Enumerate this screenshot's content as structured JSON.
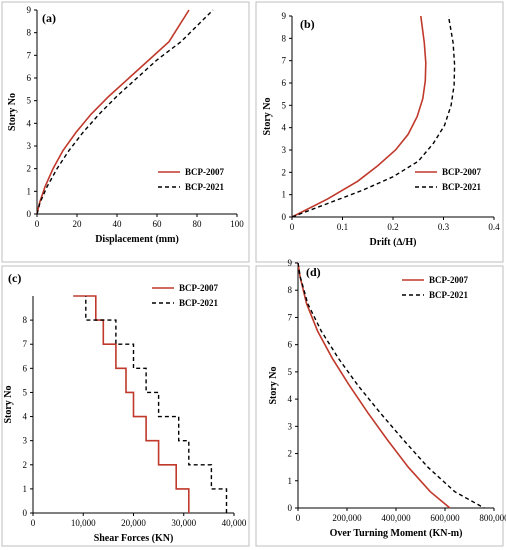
{
  "chart_data": [
    {
      "panel": "(a)",
      "type": "line",
      "xlabel": "Displacement (mm)",
      "ylabel": "Story No",
      "xlim": [
        0,
        100
      ],
      "ylim": [
        0,
        9
      ],
      "xticks": [
        0,
        20,
        40,
        60,
        80,
        100
      ],
      "xtick_labels": [
        "0",
        "20",
        "40",
        "60",
        "80",
        "100"
      ],
      "yticks": [
        0,
        1,
        2,
        3,
        4,
        5,
        6,
        7,
        8,
        9
      ],
      "ytick_labels": [
        "0",
        "1",
        "2",
        "3",
        "4",
        "5",
        "6",
        "7",
        "8",
        "9"
      ],
      "grid": false,
      "legend_position": "bottom-right",
      "series": [
        {
          "name": "BCP-2007",
          "color": "#c0392b",
          "dash": "solid",
          "step": false,
          "x": [
            0,
            1.3,
            4,
            8,
            13,
            19.5,
            27,
            36,
            46,
            56,
            66,
            76
          ],
          "y": [
            0,
            0.5,
            1.2,
            2,
            2.8,
            3.6,
            4.4,
            5.2,
            6,
            6.8,
            7.6,
            9
          ]
        },
        {
          "name": "BCP-2021",
          "color": "#000000",
          "dash": "dashed",
          "step": false,
          "x": [
            0,
            1.5,
            5,
            10,
            16,
            23,
            31,
            40,
            50,
            60,
            72,
            88
          ],
          "y": [
            0,
            0.5,
            1.2,
            2,
            2.8,
            3.6,
            4.4,
            5.2,
            6,
            6.8,
            7.6,
            9
          ]
        }
      ]
    },
    {
      "panel": "(b)",
      "type": "line",
      "xlabel": "Drift (∆/H)",
      "ylabel": "Story No",
      "xlim": [
        0,
        0.4
      ],
      "ylim": [
        0,
        9
      ],
      "xticks": [
        0,
        0.1,
        0.2,
        0.3,
        0.4
      ],
      "xtick_labels": [
        "0",
        "0.1",
        "0.2",
        "0.3",
        "0.4"
      ],
      "yticks": [
        0,
        1,
        2,
        3,
        4,
        5,
        6,
        7,
        8,
        9
      ],
      "ytick_labels": [
        "0",
        "1",
        "2",
        "3",
        "4",
        "5",
        "6",
        "7",
        "8",
        "9"
      ],
      "grid": false,
      "legend_position": "bottom-right",
      "series": [
        {
          "name": "BCP-2007",
          "color": "#c0392b",
          "dash": "solid",
          "step": false,
          "x": [
            0,
            0.07,
            0.13,
            0.17,
            0.205,
            0.23,
            0.248,
            0.259,
            0.264,
            0.265,
            0.262,
            0.255
          ],
          "y": [
            0,
            0.8,
            1.6,
            2.3,
            3.0,
            3.7,
            4.5,
            5.3,
            6.1,
            6.9,
            7.8,
            9
          ]
        },
        {
          "name": "BCP-2021",
          "color": "#000000",
          "dash": "dashed",
          "step": false,
          "x": [
            0,
            0.07,
            0.14,
            0.2,
            0.25,
            0.28,
            0.302,
            0.315,
            0.321,
            0.322,
            0.319,
            0.31
          ],
          "y": [
            0,
            0.6,
            1.2,
            1.8,
            2.5,
            3.3,
            4.1,
            5.0,
            5.9,
            6.8,
            7.8,
            9
          ]
        }
      ]
    },
    {
      "panel": "(c)",
      "type": "line",
      "xlabel": "Shear Forces (KN)",
      "ylabel": "Story No",
      "xlim": [
        0,
        40000
      ],
      "ylim": [
        0,
        9
      ],
      "xticks": [
        0,
        10000,
        20000,
        30000,
        40000
      ],
      "xtick_labels": [
        "0",
        "10,000",
        "20,000",
        "30,000",
        "40,000"
      ],
      "yticks": [
        0,
        1,
        2,
        3,
        4,
        5,
        6,
        7,
        8
      ],
      "ytick_labels": [
        "0",
        "1",
        "2",
        "3",
        "4",
        "5",
        "6",
        "7",
        "8"
      ],
      "grid": false,
      "legend_position": "top-right",
      "series": [
        {
          "name": "BCP-2007",
          "color": "#c0392b",
          "dash": "solid",
          "step": true,
          "x": [
            31000,
            31000,
            28500,
            28500,
            25000,
            25000,
            22500,
            22500,
            20000,
            20000,
            18500,
            18500,
            16500,
            16500,
            14000,
            14000,
            12500,
            12500,
            8000,
            8000
          ],
          "y": [
            0,
            1,
            1,
            2,
            2,
            3,
            3,
            4,
            4,
            5,
            5,
            6,
            6,
            7,
            7,
            8,
            8,
            9,
            9,
            9
          ]
        },
        {
          "name": "BCP-2021",
          "color": "#000000",
          "dash": "dashed",
          "step": true,
          "x": [
            38500,
            38500,
            35500,
            35500,
            31000,
            31000,
            29000,
            29000,
            25000,
            25000,
            22500,
            22500,
            20000,
            20000,
            16500,
            16500,
            10500,
            10500
          ],
          "y": [
            0,
            1,
            1,
            2,
            2,
            3,
            3,
            4,
            4,
            5,
            5,
            6,
            6,
            7,
            7,
            8,
            8,
            9
          ]
        }
      ]
    },
    {
      "panel": "(d)",
      "type": "line",
      "xlabel": "Over Turning Moment (KN-m)",
      "ylabel": "Story No",
      "xlim": [
        0,
        800000
      ],
      "ylim": [
        0,
        9
      ],
      "xticks": [
        0,
        200000,
        400000,
        600000,
        800000
      ],
      "xtick_labels": [
        "0",
        "200,000",
        "400,000",
        "600,000",
        "800,000"
      ],
      "yticks": [
        0,
        1,
        2,
        3,
        4,
        5,
        6,
        7,
        8,
        9
      ],
      "ytick_labels": [
        "0",
        "1",
        "2",
        "3",
        "4",
        "5",
        "6",
        "7",
        "8",
        "9"
      ],
      "grid": false,
      "legend_position": "top-right",
      "series": [
        {
          "name": "BCP-2007",
          "color": "#c0392b",
          "dash": "solid",
          "step": false,
          "x": [
            0,
            8000,
            35000,
            80000,
            140000,
            210000,
            285000,
            365000,
            450000,
            540000,
            620000
          ],
          "y": [
            9,
            8.5,
            7.5,
            6.5,
            5.5,
            4.5,
            3.5,
            2.5,
            1.5,
            0.6,
            0
          ]
        },
        {
          "name": "BCP-2021",
          "color": "#000000",
          "dash": "dashed",
          "step": false,
          "x": [
            0,
            9000,
            40000,
            95000,
            165000,
            245000,
            335000,
            430000,
            530000,
            640000,
            760000
          ],
          "y": [
            9,
            8.5,
            7.5,
            6.5,
            5.5,
            4.5,
            3.5,
            2.5,
            1.5,
            0.6,
            0
          ]
        }
      ]
    }
  ]
}
